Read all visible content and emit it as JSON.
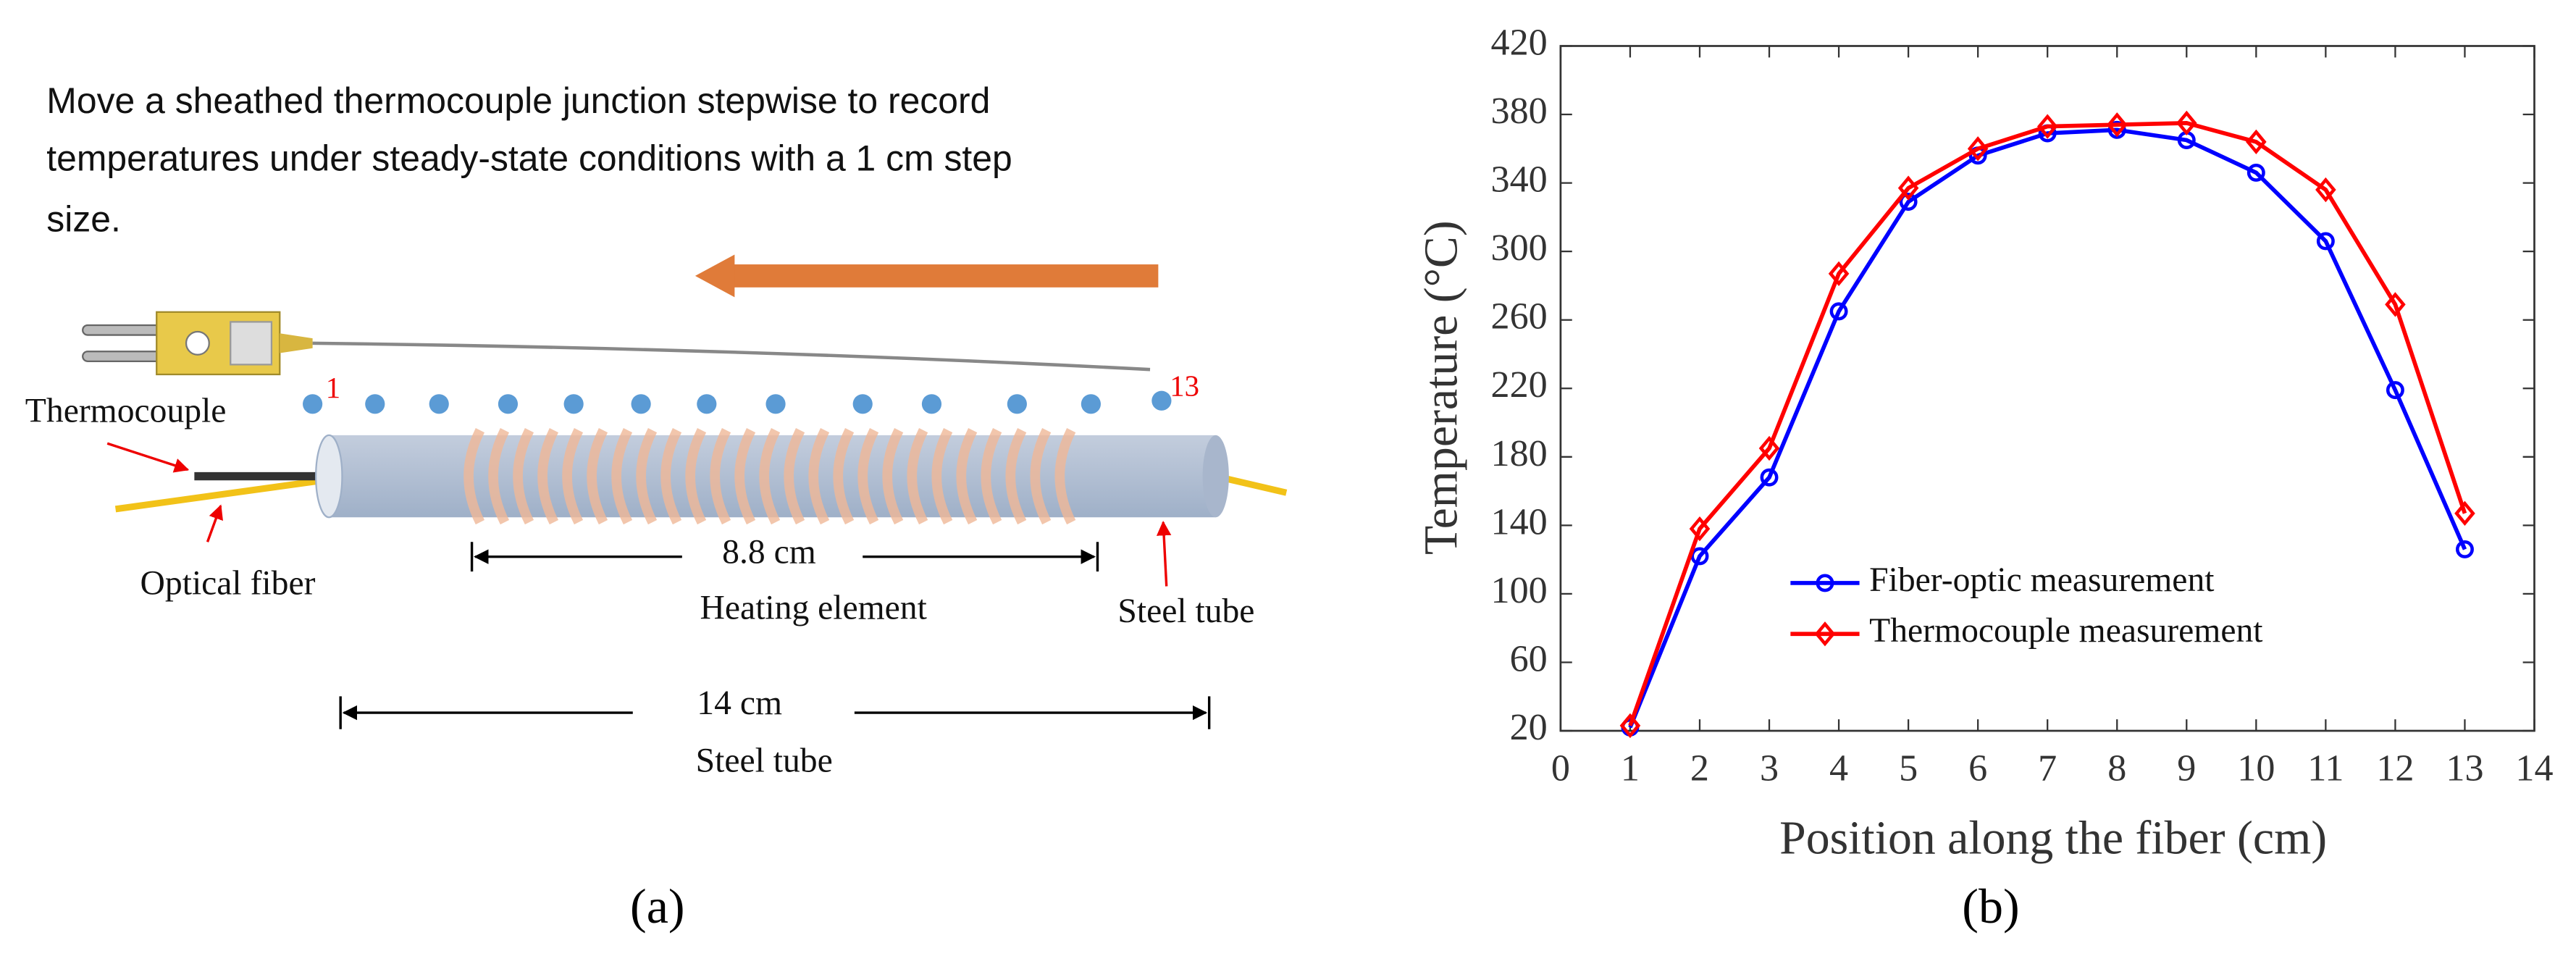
{
  "diagram": {
    "description": [
      "Move a sheathed thermocouple junction stepwise to record",
      "temperatures under steady-state conditions with a 1 cm step",
      "size."
    ],
    "first_position": "1",
    "last_position": "13",
    "thermocouple": "Thermocouple",
    "optical_fiber": "Optical fiber",
    "heater_length": "8.8 cm",
    "heater": "Heating element",
    "tube_pointer": "Steel tube",
    "tube_length": "14 cm",
    "tube": "Steel tube",
    "panel_label": "(a)"
  },
  "chart_data": {
    "type": "line",
    "panel_label": "(b)",
    "x_label": "Position along the fiber (cm)",
    "y_label": "Temperature (°C)",
    "x": [
      1,
      2,
      3,
      4,
      5,
      6,
      7,
      8,
      9,
      10,
      11,
      12,
      13
    ],
    "series": [
      {
        "name": "Fiber-optic measurement",
        "color": "#0000ff",
        "marker": "circle",
        "values": [
          22,
          122,
          168,
          265,
          329,
          356,
          369,
          371,
          365,
          346,
          306,
          219,
          126
        ]
      },
      {
        "name": "Thermocouple measurement",
        "color": "#ff0000",
        "marker": "diamond",
        "values": [
          23,
          138,
          185,
          287,
          337,
          360,
          373,
          374,
          375,
          364,
          336,
          269,
          147
        ]
      }
    ],
    "xlim": [
      0,
      14
    ],
    "xticks": [
      0,
      1,
      2,
      3,
      4,
      5,
      6,
      7,
      8,
      9,
      10,
      11,
      12,
      13,
      14
    ],
    "ylim": [
      20,
      420
    ],
    "yticks": [
      20,
      60,
      100,
      140,
      180,
      220,
      260,
      300,
      340,
      380,
      420
    ],
    "legend": "lower center"
  }
}
